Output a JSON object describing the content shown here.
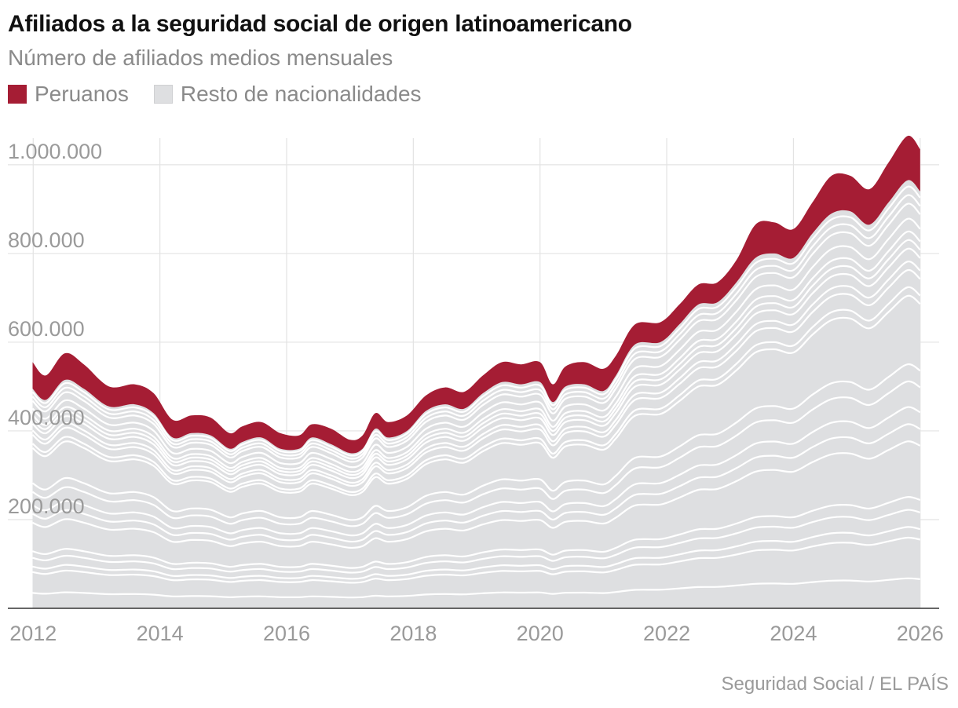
{
  "title": "Afiliados a la seguridad social de origen latinoamericano",
  "subtitle": "Número de afiliados medios mensuales",
  "source": "Seguridad Social / EL PAÍS",
  "legend": [
    {
      "label": "Peruanos",
      "color": "#a51d34"
    },
    {
      "label": "Resto de nacionalidades",
      "color": "#dedfe1"
    }
  ],
  "chart_data": {
    "type": "area",
    "stacked": true,
    "x": [
      2011.99,
      2012.2,
      2012.5,
      2012.8,
      2013.2,
      2013.6,
      2013.9,
      2014.2,
      2014.5,
      2014.8,
      2015.1,
      2015.3,
      2015.6,
      2015.9,
      2016.2,
      2016.4,
      2016.7,
      2017.0,
      2017.2,
      2017.4,
      2017.6,
      2017.9,
      2018.2,
      2018.5,
      2018.8,
      2019.1,
      2019.4,
      2019.7,
      2020.0,
      2020.2,
      2020.4,
      2020.7,
      2021.0,
      2021.2,
      2021.5,
      2021.9,
      2022.2,
      2022.5,
      2022.8,
      2023.1,
      2023.4,
      2023.7,
      2024.0,
      2024.3,
      2024.6,
      2024.9,
      2025.2,
      2025.5,
      2025.8,
      2026.0
    ],
    "series": [
      {
        "name": "Resto de nacionalidades",
        "color": "#dedfe1",
        "values": [
          495000,
          470000,
          515000,
          495000,
          455000,
          460000,
          440000,
          385000,
          395000,
          390000,
          360000,
          375000,
          385000,
          360000,
          360000,
          385000,
          370000,
          350000,
          360000,
          405000,
          385000,
          400000,
          445000,
          460000,
          450000,
          485000,
          510000,
          505000,
          510000,
          465000,
          500000,
          505000,
          490000,
          525000,
          595000,
          600000,
          640000,
          685000,
          690000,
          735000,
          790000,
          800000,
          790000,
          845000,
          890000,
          895000,
          865000,
          915000,
          965000,
          940000
        ]
      },
      {
        "name": "Peruanos",
        "color": "#a51d34",
        "values": [
          60000,
          55000,
          60000,
          55000,
          45000,
          45000,
          45000,
          40000,
          40000,
          40000,
          35000,
          35000,
          35000,
          35000,
          30000,
          30000,
          35000,
          30000,
          30000,
          35000,
          35000,
          35000,
          35000,
          38000,
          38000,
          40000,
          45000,
          45000,
          45000,
          40000,
          45000,
          50000,
          50000,
          45000,
          45000,
          45000,
          45000,
          45000,
          45000,
          50000,
          75000,
          70000,
          65000,
          70000,
          85000,
          80000,
          80000,
          90000,
          100000,
          95000
        ]
      }
    ],
    "inner_lines_share": [
      0.985,
      0.965,
      0.945,
      0.91,
      0.88,
      0.86,
      0.84,
      0.81,
      0.79,
      0.75,
      0.73,
      0.57,
      0.53,
      0.47,
      0.43,
      0.39,
      0.26,
      0.23,
      0.19,
      0.165,
      0.07
    ],
    "xlim": [
      2011.6,
      2026.3
    ],
    "ylim": [
      0,
      1060000
    ],
    "x_ticks": [
      2012,
      2014,
      2016,
      2018,
      2020,
      2022,
      2024,
      2026
    ],
    "y_ticks": [
      200000,
      400000,
      600000,
      800000,
      1000000
    ],
    "y_tick_labels": [
      "200.000",
      "400.000",
      "600.000",
      "800.000",
      "1.000.000"
    ],
    "x_tick_labels": [
      "2012",
      "2014",
      "2016",
      "2018",
      "2020",
      "2022",
      "2024",
      "2026"
    ],
    "grid": {
      "vertical": true,
      "horizontal": true
    },
    "legend_position": "top-left"
  }
}
